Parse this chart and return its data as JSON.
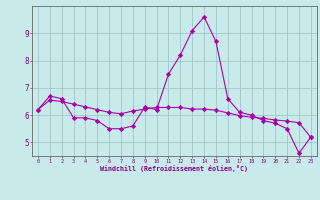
{
  "x": [
    0,
    1,
    2,
    3,
    4,
    5,
    6,
    7,
    8,
    9,
    10,
    11,
    12,
    13,
    14,
    15,
    16,
    17,
    18,
    19,
    20,
    21,
    22,
    23
  ],
  "line1": [
    6.2,
    6.7,
    6.6,
    5.9,
    5.9,
    5.8,
    5.5,
    5.5,
    5.6,
    6.3,
    6.2,
    7.5,
    8.2,
    9.1,
    9.6,
    8.7,
    6.6,
    6.1,
    6.0,
    5.8,
    5.7,
    5.5,
    4.6,
    5.2
  ],
  "line2": [
    6.2,
    6.55,
    6.5,
    6.4,
    6.3,
    6.2,
    6.1,
    6.05,
    6.15,
    6.22,
    6.28,
    6.28,
    6.28,
    6.22,
    6.22,
    6.18,
    6.08,
    5.98,
    5.92,
    5.88,
    5.82,
    5.78,
    5.72,
    5.18
  ],
  "line_color": "#aa00aa",
  "bg_color": "#c8eaea",
  "grid_color": "#a0c8c8",
  "xlabel": "Windchill (Refroidissement éolien,°C)",
  "xlim": [
    -0.5,
    23.5
  ],
  "ylim": [
    4.5,
    10.0
  ],
  "yticks": [
    5,
    6,
    7,
    8,
    9
  ],
  "xticks": [
    0,
    1,
    2,
    3,
    4,
    5,
    6,
    7,
    8,
    9,
    10,
    11,
    12,
    13,
    14,
    15,
    16,
    17,
    18,
    19,
    20,
    21,
    22,
    23
  ],
  "xlabel_color": "#880088",
  "tick_color": "#880088",
  "axis_color": "#666666",
  "marker": "D",
  "markersize": 2.2,
  "linewidth": 0.8
}
